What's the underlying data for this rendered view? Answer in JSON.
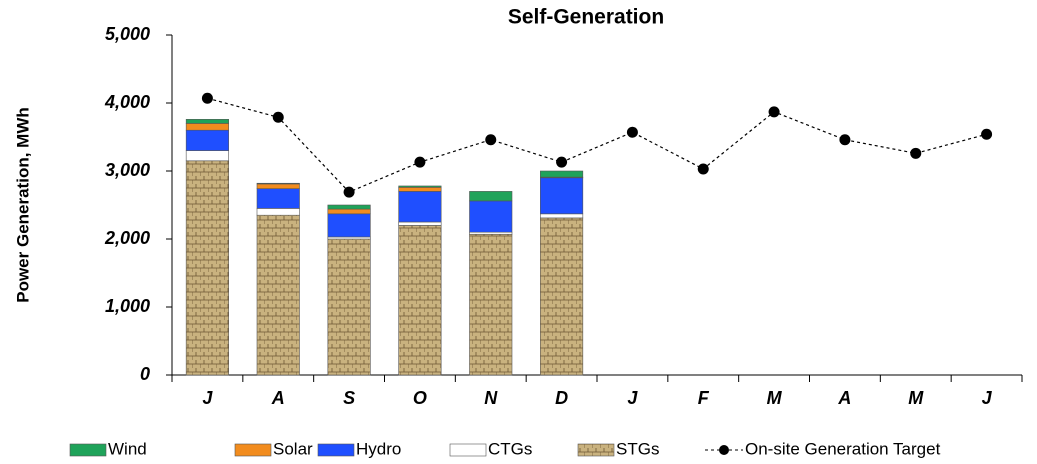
{
  "chart_data": {
    "type": "bar",
    "title": "Self-Generation",
    "y_label": "Power Generation, MWh",
    "categories": [
      "J",
      "A",
      "S",
      "O",
      "N",
      "D",
      "J",
      "F",
      "M",
      "A",
      "M",
      "J"
    ],
    "stacked": true,
    "series": [
      {
        "name": "STGs",
        "color": "#c9b27f",
        "values": [
          3150,
          2350,
          2000,
          2200,
          2070,
          2310,
          null,
          null,
          null,
          null,
          null,
          null
        ]
      },
      {
        "name": "CTGs",
        "color": "#ffffff",
        "values": [
          150,
          100,
          30,
          50,
          30,
          60,
          null,
          null,
          null,
          null,
          null,
          null
        ]
      },
      {
        "name": "Hydro",
        "color": "#1f4fff",
        "values": [
          300,
          290,
          340,
          450,
          460,
          530,
          null,
          null,
          null,
          null,
          null,
          null
        ]
      },
      {
        "name": "Solar",
        "color": "#f28c1e",
        "values": [
          100,
          70,
          70,
          60,
          0,
          10,
          null,
          null,
          null,
          null,
          null,
          null
        ]
      },
      {
        "name": "Wind",
        "color": "#1fa35a",
        "values": [
          60,
          10,
          60,
          20,
          140,
          90,
          null,
          null,
          null,
          null,
          null,
          null
        ]
      },
      {
        "name": "On-site Generation Target",
        "type": "line",
        "color": "#000000",
        "values": [
          4070,
          3790,
          2690,
          3130,
          3460,
          3130,
          3570,
          3030,
          3870,
          3460,
          3260,
          3540
        ]
      }
    ],
    "ylim": [
      0,
      5000
    ],
    "yticks": [
      0,
      {
        "value": 1000,
        "label": "1,000"
      },
      {
        "value": 2000,
        "label": "2,000"
      },
      {
        "value": 3000,
        "label": "3,000"
      },
      {
        "value": 4000,
        "label": "4,000"
      },
      {
        "value": 5000,
        "label": "5,000"
      }
    ],
    "legend": "bottom"
  }
}
